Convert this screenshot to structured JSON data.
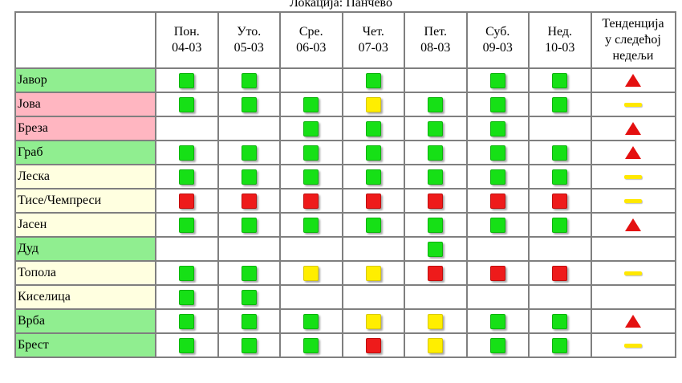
{
  "location": "Локација: Панчево",
  "columns": [
    {
      "day": "Пон.",
      "date": "04-03"
    },
    {
      "day": "Уто.",
      "date": "05-03"
    },
    {
      "day": "Сре.",
      "date": "06-03"
    },
    {
      "day": "Чет.",
      "date": "07-03"
    },
    {
      "day": "Пет.",
      "date": "08-03"
    },
    {
      "day": "Суб.",
      "date": "09-03"
    },
    {
      "day": "Нед.",
      "date": "10-03"
    }
  ],
  "trend_header": [
    "Тенденција",
    "у следећој",
    "недељи"
  ],
  "colors": {
    "row_green": "#90ee90",
    "row_pink": "#ffb6c1",
    "row_cream": "#ffffe0",
    "level_green": "#16e016",
    "level_yellow": "#ffee00",
    "level_red": "#ee1b1b",
    "trend_up": "#e41010",
    "trend_flat": "#ffe800"
  },
  "rows": [
    {
      "name": "Јавор",
      "bg": "green",
      "levels": [
        "green",
        "green",
        "",
        "green",
        "",
        "green",
        "green"
      ],
      "trend": "up"
    },
    {
      "name": "Јова",
      "bg": "pink",
      "levels": [
        "green",
        "green",
        "green",
        "yellow",
        "green",
        "green",
        "green"
      ],
      "trend": "flat"
    },
    {
      "name": "Бреза",
      "bg": "pink",
      "levels": [
        "",
        "",
        "green",
        "green",
        "green",
        "green",
        ""
      ],
      "trend": "up"
    },
    {
      "name": "Граб",
      "bg": "green",
      "levels": [
        "green",
        "green",
        "green",
        "green",
        "green",
        "green",
        "green"
      ],
      "trend": "up"
    },
    {
      "name": "Леска",
      "bg": "cream",
      "levels": [
        "green",
        "green",
        "green",
        "green",
        "green",
        "green",
        "green"
      ],
      "trend": "flat"
    },
    {
      "name": "Тисе/Чемпреси",
      "bg": "cream",
      "levels": [
        "red",
        "red",
        "red",
        "red",
        "red",
        "red",
        "red"
      ],
      "trend": "flat"
    },
    {
      "name": "Јасен",
      "bg": "cream",
      "levels": [
        "green",
        "green",
        "green",
        "green",
        "green",
        "green",
        "green"
      ],
      "trend": "up"
    },
    {
      "name": "Дуд",
      "bg": "green",
      "levels": [
        "",
        "",
        "",
        "",
        "green",
        "",
        ""
      ],
      "trend": ""
    },
    {
      "name": "Топола",
      "bg": "cream",
      "levels": [
        "green",
        "green",
        "yellow",
        "yellow",
        "red",
        "red",
        "red"
      ],
      "trend": "flat"
    },
    {
      "name": "Киселица",
      "bg": "cream",
      "levels": [
        "green",
        "green",
        "",
        "",
        "",
        "",
        ""
      ],
      "trend": ""
    },
    {
      "name": "Врба",
      "bg": "green",
      "levels": [
        "green",
        "green",
        "green",
        "yellow",
        "yellow",
        "green",
        "green"
      ],
      "trend": "up"
    },
    {
      "name": "Брест",
      "bg": "green",
      "levels": [
        "green",
        "green",
        "green",
        "red",
        "yellow",
        "green",
        "green"
      ],
      "trend": "flat"
    }
  ]
}
